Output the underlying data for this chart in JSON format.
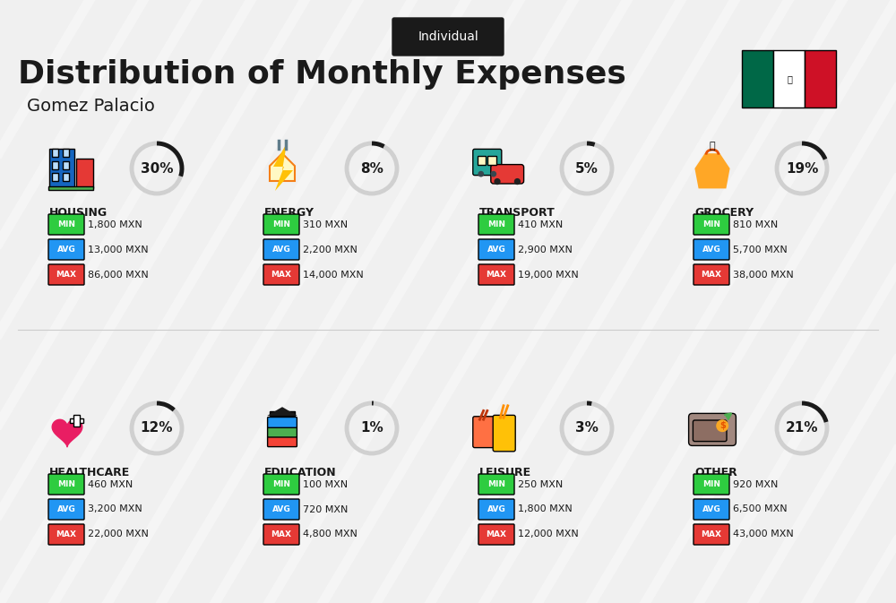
{
  "title": "Distribution of Monthly Expenses",
  "subtitle": "Gomez Palacio",
  "badge": "Individual",
  "bg_color": "#f0f0f0",
  "categories": [
    {
      "name": "HOUSING",
      "percent": 30,
      "icon_color": "#2255aa",
      "min_val": "1,800 MXN",
      "avg_val": "13,000 MXN",
      "max_val": "86,000 MXN"
    },
    {
      "name": "ENERGY",
      "percent": 8,
      "icon_color": "#f5c518",
      "min_val": "310 MXN",
      "avg_val": "2,200 MXN",
      "max_val": "14,000 MXN"
    },
    {
      "name": "TRANSPORT",
      "percent": 5,
      "icon_color": "#2bbbad",
      "min_val": "410 MXN",
      "avg_val": "2,900 MXN",
      "max_val": "19,000 MXN"
    },
    {
      "name": "GROCERY",
      "percent": 19,
      "icon_color": "#f5a623",
      "min_val": "810 MXN",
      "avg_val": "5,700 MXN",
      "max_val": "38,000 MXN"
    },
    {
      "name": "HEALTHCARE",
      "percent": 12,
      "icon_color": "#e91e63",
      "min_val": "460 MXN",
      "avg_val": "3,200 MXN",
      "max_val": "22,000 MXN"
    },
    {
      "name": "EDUCATION",
      "percent": 1,
      "icon_color": "#4caf50",
      "min_val": "100 MXN",
      "avg_val": "720 MXN",
      "max_val": "4,800 MXN"
    },
    {
      "name": "LEISURE",
      "percent": 3,
      "icon_color": "#ff7043",
      "min_val": "250 MXN",
      "avg_val": "1,800 MXN",
      "max_val": "12,000 MXN"
    },
    {
      "name": "OTHER",
      "percent": 21,
      "icon_color": "#8d6e63",
      "min_val": "920 MXN",
      "avg_val": "6,500 MXN",
      "max_val": "43,000 MXN"
    }
  ],
  "min_color": "#2ecc40",
  "avg_color": "#2196f3",
  "max_color": "#e53935",
  "label_color_min": "#27ae60",
  "label_color_avg": "#1565c0",
  "label_color_max": "#c62828"
}
